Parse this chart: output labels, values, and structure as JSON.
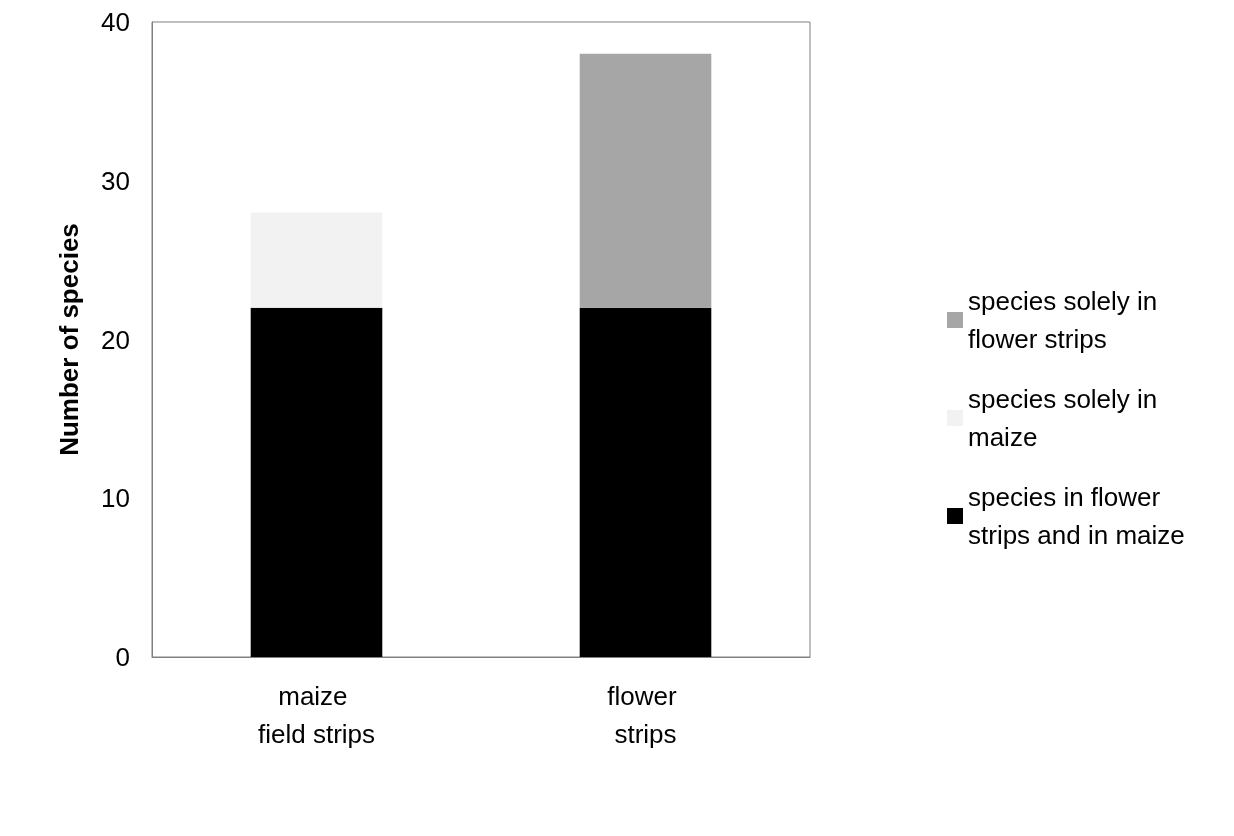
{
  "chart_data": {
    "type": "bar",
    "stacked": true,
    "ylabel": "Number of species",
    "categories": [
      "maize field strips",
      "flower strips"
    ],
    "series": [
      {
        "name": "species in flower strips and in maize",
        "color": "#000000",
        "values": [
          22,
          22
        ]
      },
      {
        "name": "species solely in maize",
        "color": "#f2f2f2",
        "values": [
          6,
          null
        ]
      },
      {
        "name": "species solely in flower strips",
        "color": "#a6a6a6",
        "values": [
          null,
          16
        ]
      }
    ],
    "ylim": [
      0,
      40
    ],
    "yticks": [
      0,
      10,
      20,
      30,
      40
    ],
    "grid": false,
    "legend": "right"
  }
}
